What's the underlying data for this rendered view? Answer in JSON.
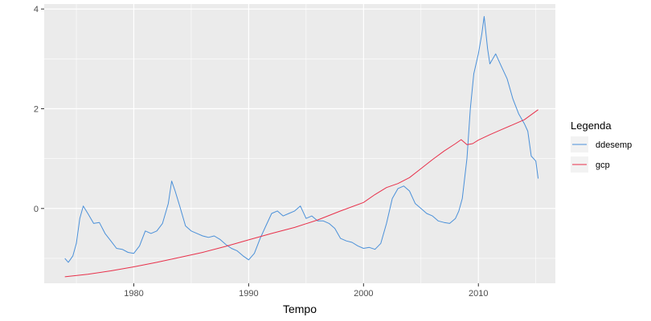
{
  "chart_data": {
    "type": "line",
    "title": "",
    "xlabel": "Tempo",
    "ylabel": "",
    "xlim": [
      1972.2,
      2016.7
    ],
    "ylim": [
      -1.5,
      4.1
    ],
    "x_ticks": [
      1980,
      1990,
      2000,
      2010
    ],
    "x_tick_labels": [
      "1980",
      "1990",
      "2000",
      "2010"
    ],
    "y_ticks": [
      0,
      2,
      4
    ],
    "y_tick_labels": [
      "0",
      "2",
      "4"
    ],
    "grid": true,
    "legend": {
      "title": "Legenda",
      "placement": "right"
    },
    "series": [
      {
        "name": "ddesemp",
        "color": "#4a90d9",
        "x": [
          1974.0,
          1974.3,
          1974.7,
          1975.0,
          1975.3,
          1975.6,
          1976.0,
          1976.5,
          1977.0,
          1977.5,
          1978.0,
          1978.5,
          1979.0,
          1979.5,
          1980.0,
          1980.5,
          1981.0,
          1981.5,
          1982.0,
          1982.5,
          1983.0,
          1983.3,
          1983.6,
          1984.0,
          1984.5,
          1985.0,
          1985.5,
          1986.0,
          1986.5,
          1987.0,
          1987.5,
          1988.0,
          1988.5,
          1989.0,
          1989.5,
          1990.0,
          1990.5,
          1991.0,
          1991.5,
          1992.0,
          1992.5,
          1993.0,
          1993.5,
          1994.0,
          1994.5,
          1995.0,
          1995.5,
          1996.0,
          1996.5,
          1997.0,
          1997.5,
          1998.0,
          1998.5,
          1999.0,
          1999.5,
          2000.0,
          2000.5,
          2001.0,
          2001.5,
          2002.0,
          2002.5,
          2003.0,
          2003.5,
          2004.0,
          2004.5,
          2005.0,
          2005.5,
          2006.0,
          2006.5,
          2007.0,
          2007.5,
          2008.0,
          2008.3,
          2008.6,
          2009.0,
          2009.3,
          2009.6,
          2010.0,
          2010.3,
          2010.5,
          2010.8,
          2011.0,
          2011.5,
          2012.0,
          2012.5,
          2013.0,
          2013.5,
          2014.0,
          2014.3,
          2014.6,
          2015.0,
          2015.2
        ],
        "y": [
          -1.0,
          -1.08,
          -0.95,
          -0.7,
          -0.2,
          0.05,
          -0.1,
          -0.3,
          -0.28,
          -0.5,
          -0.65,
          -0.8,
          -0.82,
          -0.88,
          -0.9,
          -0.75,
          -0.45,
          -0.5,
          -0.45,
          -0.3,
          0.1,
          0.55,
          0.35,
          0.05,
          -0.35,
          -0.45,
          -0.5,
          -0.55,
          -0.58,
          -0.55,
          -0.62,
          -0.72,
          -0.8,
          -0.85,
          -0.95,
          -1.03,
          -0.9,
          -0.6,
          -0.35,
          -0.1,
          -0.05,
          -0.15,
          -0.1,
          -0.05,
          0.05,
          -0.2,
          -0.15,
          -0.25,
          -0.25,
          -0.3,
          -0.4,
          -0.6,
          -0.65,
          -0.68,
          -0.75,
          -0.8,
          -0.78,
          -0.82,
          -0.7,
          -0.3,
          0.2,
          0.4,
          0.45,
          0.35,
          0.1,
          0.0,
          -0.1,
          -0.15,
          -0.25,
          -0.28,
          -0.3,
          -0.2,
          -0.05,
          0.2,
          1.0,
          2.0,
          2.7,
          3.1,
          3.5,
          3.85,
          3.2,
          2.9,
          3.1,
          2.85,
          2.6,
          2.2,
          1.9,
          1.7,
          1.55,
          1.05,
          0.95,
          0.6
        ]
      },
      {
        "name": "gcp",
        "color": "#e8304a",
        "x": [
          1974.0,
          1976.0,
          1978.0,
          1980.0,
          1982.0,
          1984.0,
          1986.0,
          1988.0,
          1990.0,
          1992.0,
          1994.0,
          1996.0,
          1998.0,
          2000.0,
          2001.0,
          2002.0,
          2003.0,
          2004.0,
          2005.0,
          2006.0,
          2007.0,
          2008.0,
          2008.5,
          2009.0,
          2009.5,
          2010.0,
          2011.0,
          2012.0,
          2013.0,
          2014.0,
          2015.2
        ],
        "y": [
          -1.37,
          -1.32,
          -1.25,
          -1.17,
          -1.08,
          -0.98,
          -0.88,
          -0.76,
          -0.63,
          -0.5,
          -0.38,
          -0.23,
          -0.05,
          0.12,
          0.28,
          0.42,
          0.5,
          0.62,
          0.8,
          0.98,
          1.15,
          1.3,
          1.38,
          1.28,
          1.3,
          1.37,
          1.48,
          1.58,
          1.68,
          1.78,
          1.98
        ]
      }
    ]
  }
}
